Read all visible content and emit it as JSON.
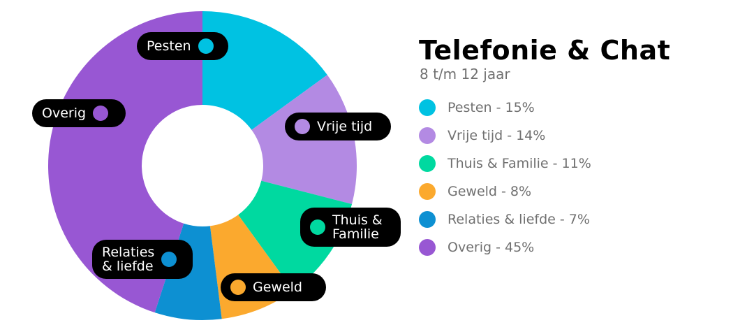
{
  "chart_data": {
    "type": "pie",
    "donut": true,
    "title": "Telefonie & Chat",
    "subtitle": "8 t/m 12 jaar",
    "slices": [
      {
        "name": "Pesten",
        "value": 15,
        "color": "#00C2E2",
        "pie_label": [
          "Pesten"
        ],
        "legend_text": "Pesten - 15%"
      },
      {
        "name": "Vrije tijd",
        "value": 14,
        "color": "#B38AE3",
        "pie_label": [
          "Vrije tijd"
        ],
        "legend_text": "Vrije tijd - 14%"
      },
      {
        "name": "Thuis & Familie",
        "value": 11,
        "color": "#00D9A0",
        "pie_label": [
          "Thuis &",
          "Familie"
        ],
        "legend_text": "Thuis & Familie - 11%"
      },
      {
        "name": "Geweld",
        "value": 8,
        "color": "#FBA92E",
        "pie_label": [
          "Geweld"
        ],
        "legend_text": "Geweld - 8%"
      },
      {
        "name": "Relaties & liefde",
        "value": 7,
        "color": "#0D90D2",
        "pie_label": [
          "Relaties",
          "& liefde"
        ],
        "legend_text": "Relaties & liefde - 7%"
      },
      {
        "name": "Overig",
        "value": 45,
        "color": "#9857D3",
        "pie_label": [
          "Overig"
        ],
        "legend_text": "Overig - 45%"
      }
    ],
    "legend_position": "right"
  }
}
